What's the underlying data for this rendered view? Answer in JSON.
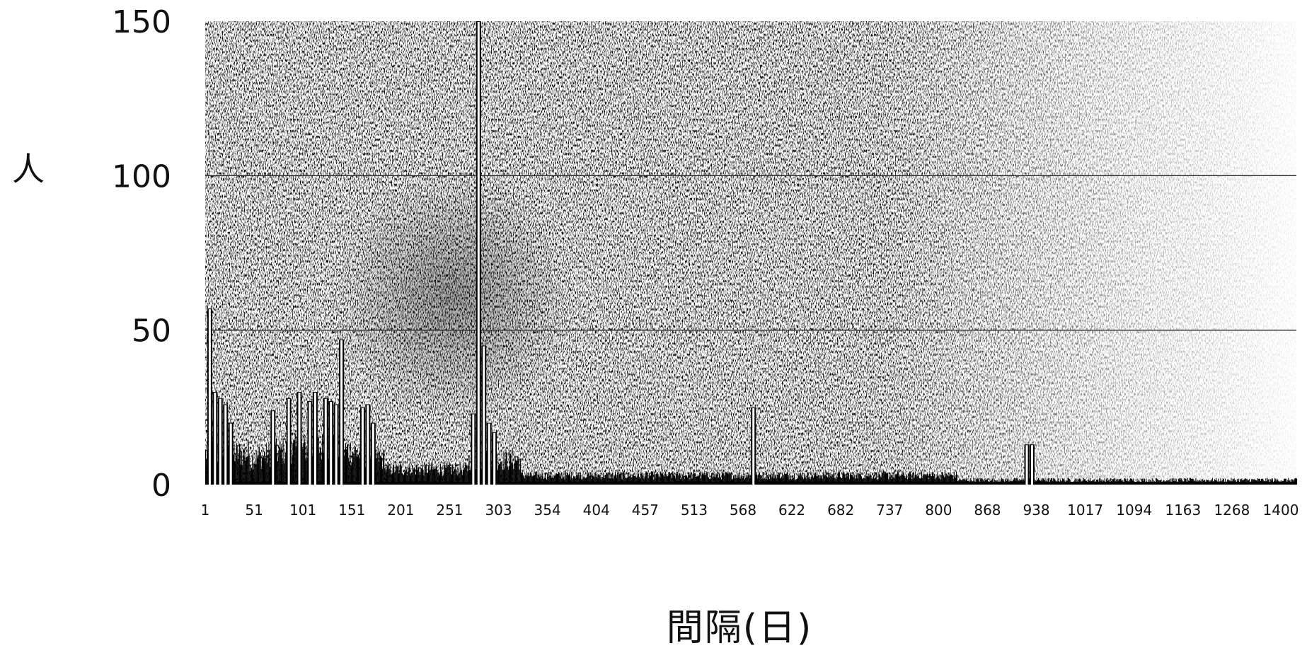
{
  "chart_data": {
    "type": "bar",
    "title": "",
    "ylabel": "人",
    "xlabel": "間隔(日)",
    "ylim": [
      0,
      150
    ],
    "xlim": [
      1,
      1450
    ],
    "yticks": [
      0,
      50,
      100,
      150
    ],
    "xtick_labels": [
      "1",
      "51",
      "101",
      "151",
      "201",
      "251",
      "303",
      "354",
      "404",
      "457",
      "513",
      "568",
      "622",
      "682",
      "737",
      "800",
      "868",
      "938",
      "1017",
      "1094",
      "1163",
      "1268",
      "1400"
    ],
    "grid": "horizontal",
    "grid_lines_at": [
      50,
      100
    ],
    "background": "dense dark stipple texture",
    "peaks": [
      {
        "x": 7,
        "y": 57
      },
      {
        "x": 14,
        "y": 30
      },
      {
        "x": 21,
        "y": 28
      },
      {
        "x": 28,
        "y": 26
      },
      {
        "x": 35,
        "y": 20
      },
      {
        "x": 91,
        "y": 24
      },
      {
        "x": 112,
        "y": 28
      },
      {
        "x": 126,
        "y": 30
      },
      {
        "x": 140,
        "y": 27
      },
      {
        "x": 147,
        "y": 30
      },
      {
        "x": 161,
        "y": 28
      },
      {
        "x": 168,
        "y": 27
      },
      {
        "x": 175,
        "y": 26
      },
      {
        "x": 182,
        "y": 47
      },
      {
        "x": 210,
        "y": 25
      },
      {
        "x": 217,
        "y": 26
      },
      {
        "x": 224,
        "y": 20
      },
      {
        "x": 357,
        "y": 23
      },
      {
        "x": 364,
        "y": 150
      },
      {
        "x": 371,
        "y": 45
      },
      {
        "x": 378,
        "y": 20
      },
      {
        "x": 385,
        "y": 17
      },
      {
        "x": 729,
        "y": 25
      },
      {
        "x": 1092,
        "y": 13
      },
      {
        "x": 1099,
        "y": 13
      }
    ]
  }
}
